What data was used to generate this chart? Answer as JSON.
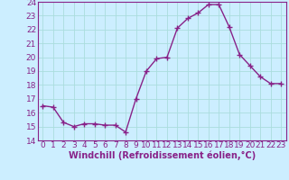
{
  "x": [
    0,
    1,
    2,
    3,
    4,
    5,
    6,
    7,
    8,
    9,
    10,
    11,
    12,
    13,
    14,
    15,
    16,
    17,
    18,
    19,
    20,
    21,
    22,
    23
  ],
  "y": [
    16.5,
    16.4,
    15.3,
    15.0,
    15.2,
    15.2,
    15.1,
    15.1,
    14.6,
    17.0,
    19.0,
    19.9,
    20.0,
    22.1,
    22.8,
    23.2,
    23.8,
    23.8,
    22.2,
    20.2,
    19.4,
    18.6,
    18.1,
    18.1
  ],
  "line_color": "#882288",
  "marker": "+",
  "marker_size": 4,
  "marker_linewidth": 1.0,
  "bg_color": "#cceeff",
  "grid_color": "#aadddd",
  "xlabel": "Windchill (Refroidissement éolien,°C)",
  "xlabel_fontsize": 7,
  "ylim": [
    14,
    24
  ],
  "xlim": [
    -0.5,
    23.5
  ],
  "yticks": [
    14,
    15,
    16,
    17,
    18,
    19,
    20,
    21,
    22,
    23,
    24
  ],
  "xticks": [
    0,
    1,
    2,
    3,
    4,
    5,
    6,
    7,
    8,
    9,
    10,
    11,
    12,
    13,
    14,
    15,
    16,
    17,
    18,
    19,
    20,
    21,
    22,
    23
  ],
  "tick_fontsize": 6.5,
  "tick_color": "#882288",
  "spine_color": "#882288",
  "linewidth": 1.0
}
